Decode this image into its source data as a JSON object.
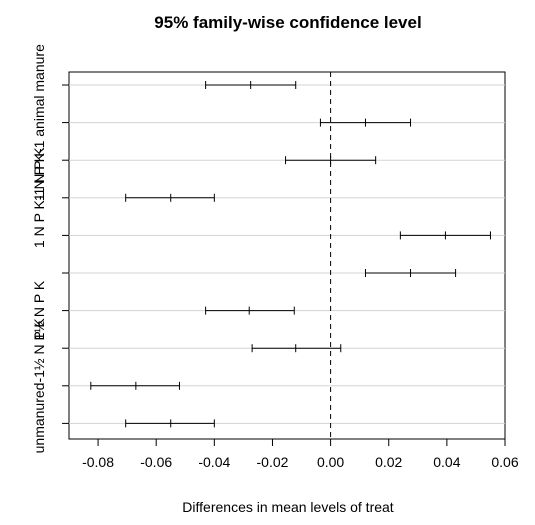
{
  "chart_data": {
    "type": "interval",
    "title": "95% family-wise confidence level",
    "xlabel": "Differences in mean levels of treat",
    "xlim": [
      -0.09,
      0.06
    ],
    "xticks": [
      -0.08,
      -0.06,
      -0.04,
      -0.02,
      0.0,
      0.02,
      0.04,
      0.06
    ],
    "xtick_labels": [
      "-0.08",
      "-0.06",
      "-0.04",
      "-0.02",
      "0.00",
      "0.02",
      "0.04",
      "0.06"
    ],
    "reference_line": 0,
    "grid": "horizontal",
    "y_labels": [
      "1 N P K-1 animal manure",
      "1 N P K-1 N P K",
      "1½ N P K",
      "unmanured-1½ N P K"
    ],
    "intervals": [
      {
        "estimate": -0.0275,
        "lower": -0.043,
        "upper": -0.012
      },
      {
        "estimate": 0.012,
        "lower": -0.0035,
        "upper": 0.0275
      },
      {
        "estimate": 0.0,
        "lower": -0.0155,
        "upper": 0.0155
      },
      {
        "estimate": -0.055,
        "lower": -0.0705,
        "upper": -0.04
      },
      {
        "estimate": 0.0395,
        "lower": 0.024,
        "upper": 0.055
      },
      {
        "estimate": 0.0275,
        "lower": 0.012,
        "upper": 0.043
      },
      {
        "estimate": -0.028,
        "lower": -0.043,
        "upper": -0.0125
      },
      {
        "estimate": -0.012,
        "lower": -0.027,
        "upper": 0.0035
      },
      {
        "estimate": -0.067,
        "lower": -0.0825,
        "upper": -0.052
      },
      {
        "estimate": -0.055,
        "lower": -0.0705,
        "upper": -0.04
      }
    ]
  }
}
